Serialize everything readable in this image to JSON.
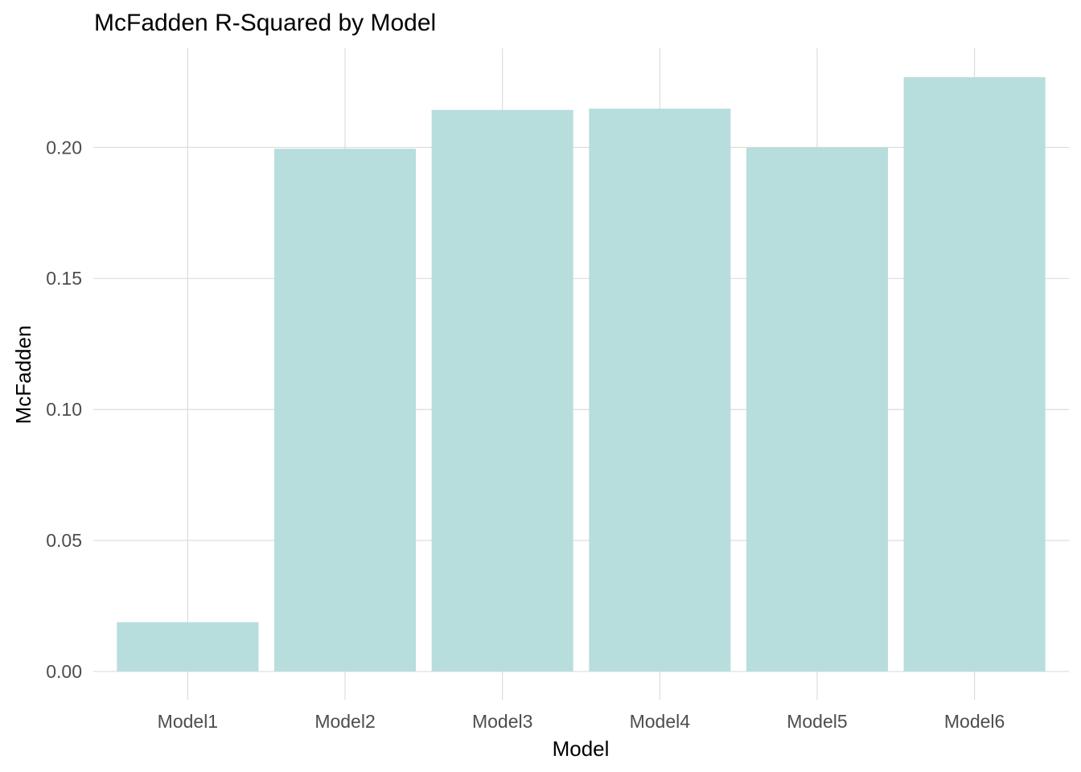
{
  "chart_data": {
    "type": "bar",
    "title": "McFadden R-Squared by Model",
    "xlabel": "Model",
    "ylabel": "McFadden",
    "categories": [
      "Model1",
      "Model2",
      "Model3",
      "Model4",
      "Model5",
      "Model6"
    ],
    "values": [
      0.0188,
      0.1995,
      0.2143,
      0.2148,
      0.2,
      0.2268
    ],
    "ylim": [
      0,
      0.2268
    ],
    "yticks": [
      0.0,
      0.05,
      0.1,
      0.15,
      0.2
    ],
    "ytick_labels": [
      "0.00",
      "0.05",
      "0.10",
      "0.15",
      "0.20"
    ],
    "grid": true,
    "legend": "none",
    "colors": {
      "bar": "#b7dedc",
      "grid": "#d9d9d9",
      "tick_text": "#4d4d4d",
      "text": "#000000"
    }
  }
}
